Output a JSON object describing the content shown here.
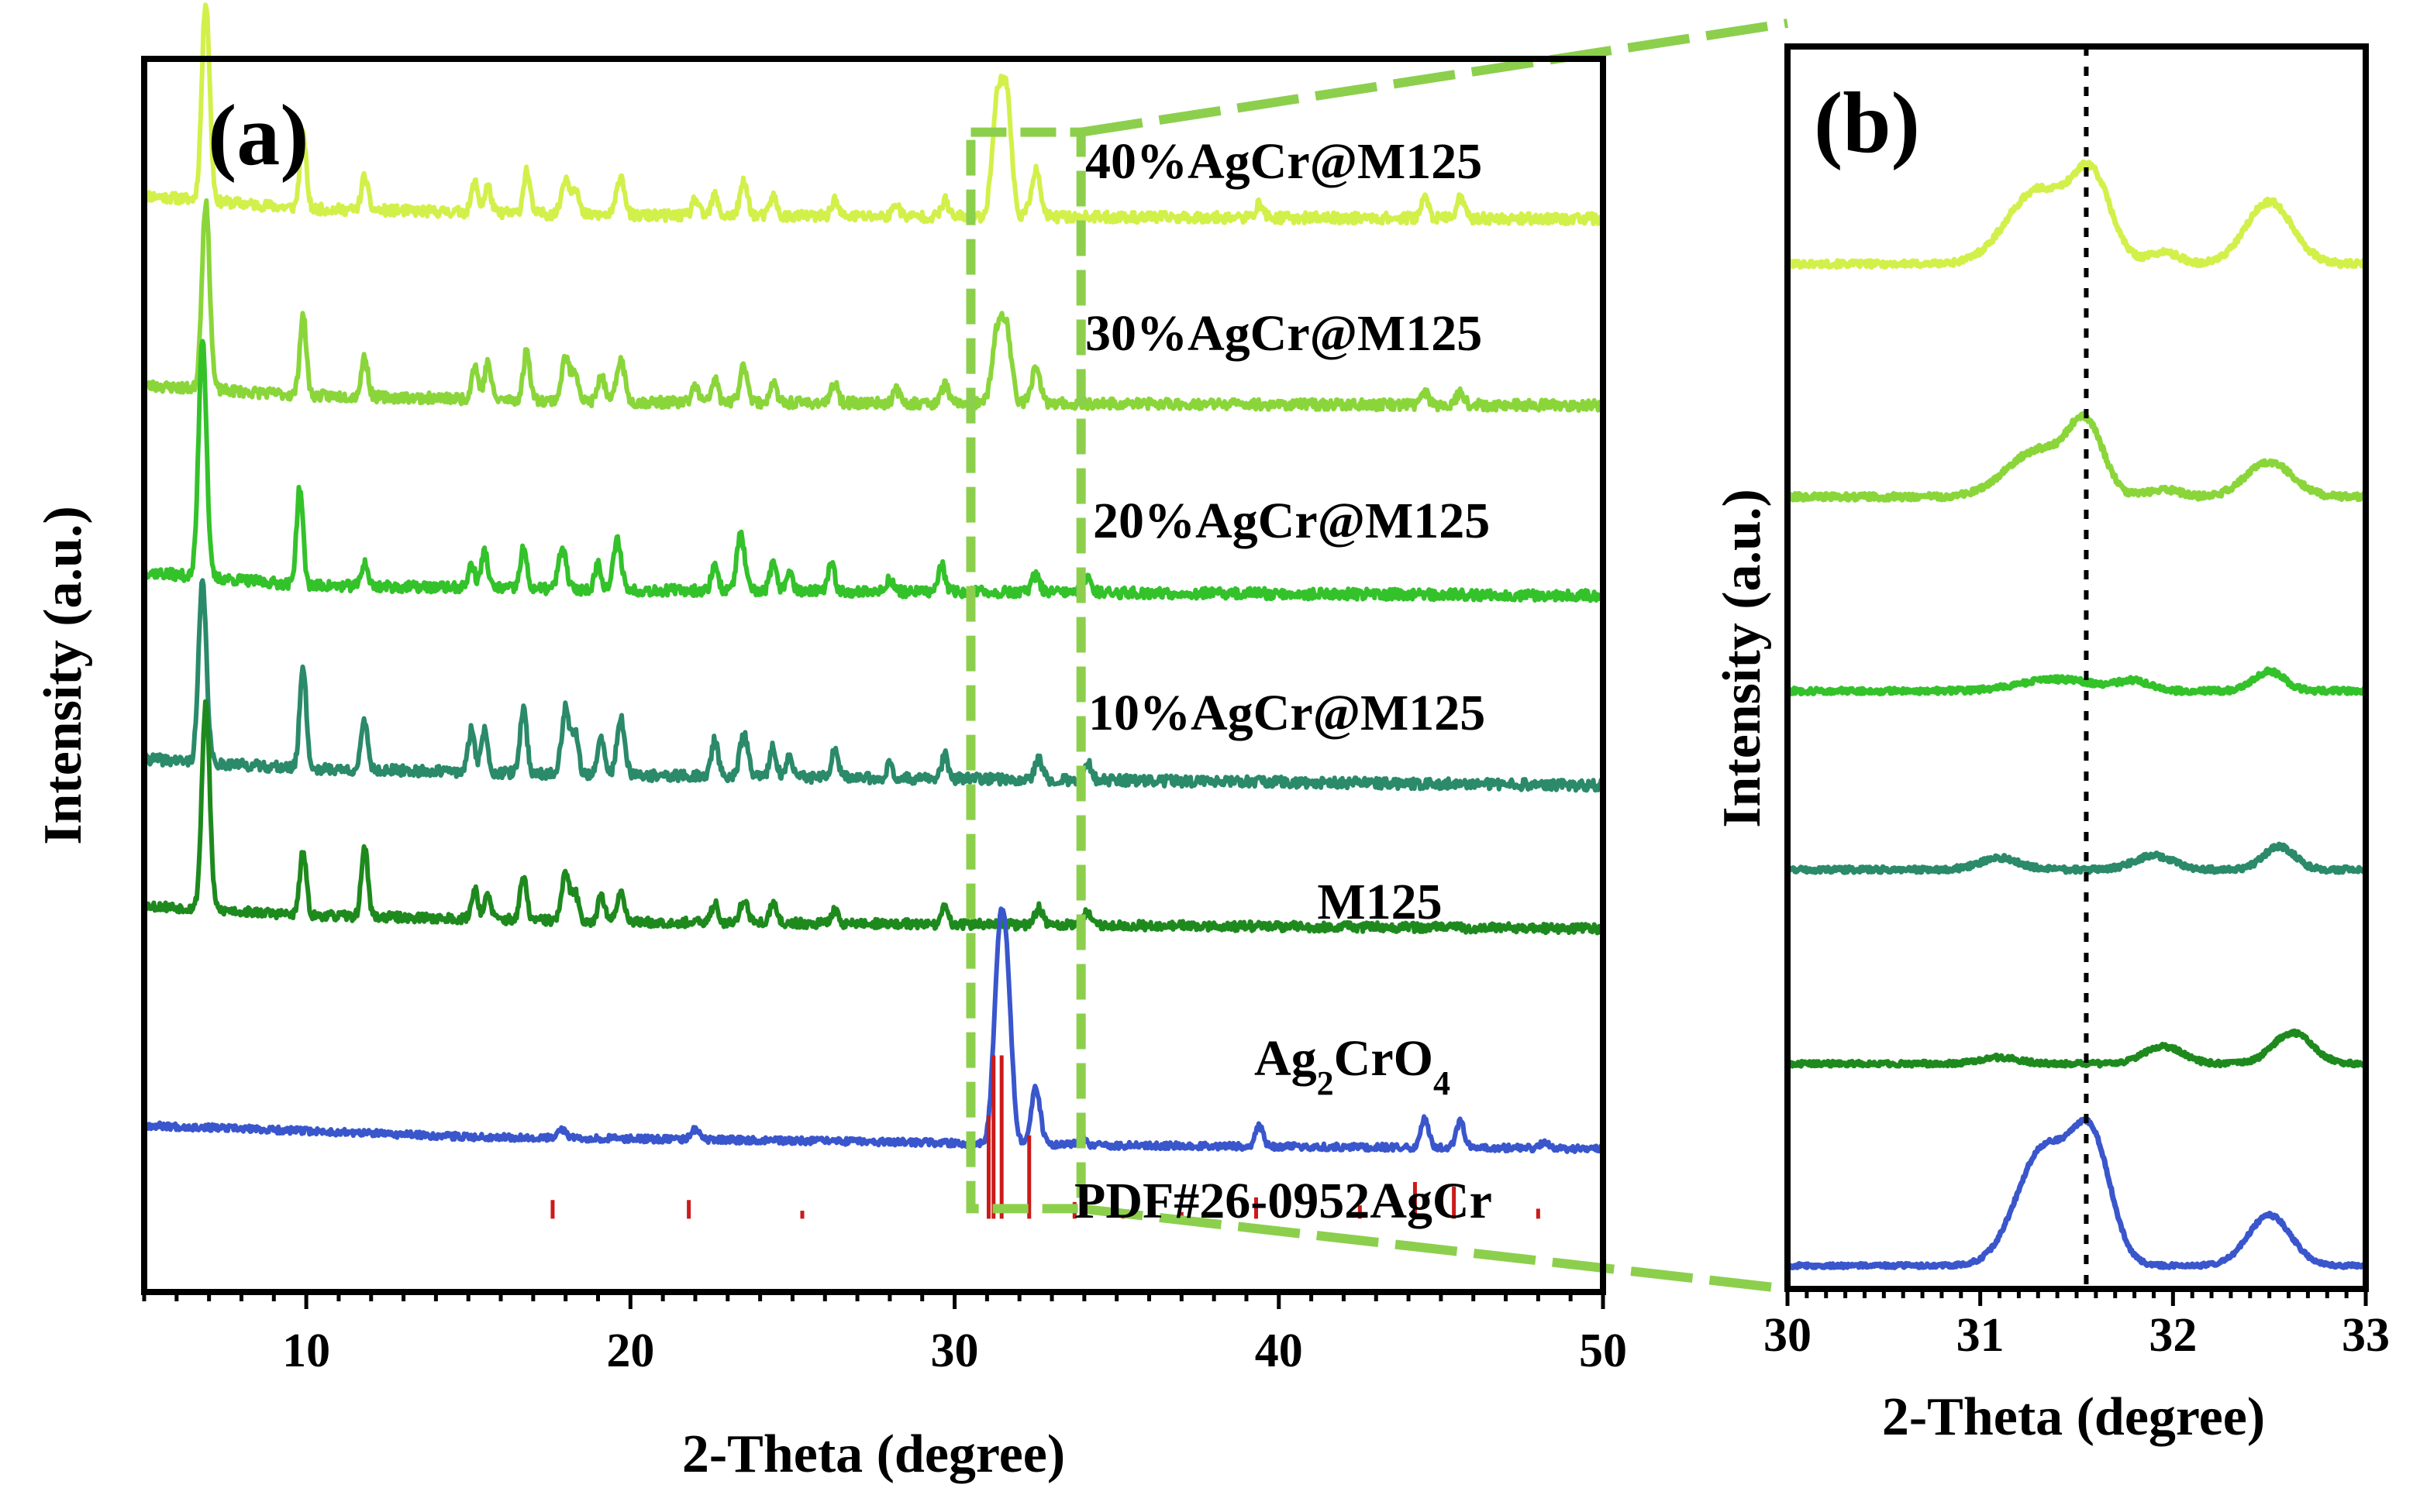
{
  "colors": {
    "s40": "#d2f04a",
    "s30": "#8ad63a",
    "s20": "#33c22a",
    "s10": "#2a8a6a",
    "m125": "#1e8a1e",
    "ag": "#3a56cc",
    "pdf": "#cc1a1a",
    "zoom": "#8ccf4d",
    "axis": "#000000"
  },
  "chart_data": [
    {
      "id": "a",
      "panel_label": "(a)",
      "type": "line",
      "xlabel": "2-Theta (degree)",
      "ylabel": "Intensity (a.u.)",
      "xlim": [
        5,
        50
      ],
      "xticks": [
        10,
        20,
        30,
        40,
        50
      ],
      "tick_labels": [
        "10",
        "20",
        "30",
        "40",
        "50"
      ],
      "ylim": [
        -1.1,
        17.4
      ],
      "y_units": "arbitrary (vertically offset stacked patterns)",
      "series": [
        {
          "key": "s40",
          "name": "40%AgCr@M125",
          "color_key": "s40",
          "offset": 15.0,
          "noise": 0.08,
          "seed": 11,
          "baseline": [
            [
              5,
              0.35
            ],
            [
              10,
              0.15
            ],
            [
              20,
              0.05
            ],
            [
              50,
              0.0
            ]
          ],
          "peaks": [
            [
              6.9,
              3.0,
              0.12
            ],
            [
              9.9,
              1.1,
              0.1
            ],
            [
              11.8,
              0.5,
              0.1
            ],
            [
              15.2,
              0.45,
              0.1
            ],
            [
              15.6,
              0.4,
              0.1
            ],
            [
              16.8,
              0.65,
              0.1
            ],
            [
              18.0,
              0.55,
              0.12
            ],
            [
              18.3,
              0.4,
              0.1
            ],
            [
              19.7,
              0.6,
              0.12
            ],
            [
              22.0,
              0.25,
              0.1
            ],
            [
              22.6,
              0.3,
              0.1
            ],
            [
              23.5,
              0.5,
              0.12
            ],
            [
              24.4,
              0.3,
              0.1
            ],
            [
              26.3,
              0.25,
              0.1
            ],
            [
              28.2,
              0.2,
              0.1
            ],
            [
              29.7,
              0.25,
              0.1
            ],
            [
              31.3,
              1.6,
              0.15
            ],
            [
              31.6,
              1.8,
              0.15
            ],
            [
              32.5,
              0.7,
              0.14
            ],
            [
              39.4,
              0.2,
              0.12
            ],
            [
              44.5,
              0.3,
              0.12
            ],
            [
              45.6,
              0.3,
              0.12
            ]
          ]
        },
        {
          "key": "s30",
          "name": "30%AgCr@M125",
          "color_key": "s30",
          "offset": 12.2,
          "noise": 0.08,
          "seed": 23,
          "baseline": [
            [
              5,
              0.3
            ],
            [
              10,
              0.15
            ],
            [
              20,
              0.05
            ],
            [
              50,
              0.0
            ]
          ],
          "peaks": [
            [
              6.9,
              2.8,
              0.12
            ],
            [
              9.9,
              1.2,
              0.1
            ],
            [
              11.8,
              0.6,
              0.1
            ],
            [
              15.2,
              0.5,
              0.1
            ],
            [
              15.6,
              0.55,
              0.1
            ],
            [
              16.8,
              0.75,
              0.1
            ],
            [
              18.0,
              0.65,
              0.12
            ],
            [
              18.3,
              0.45,
              0.1
            ],
            [
              19.1,
              0.4,
              0.1
            ],
            [
              19.7,
              0.65,
              0.12
            ],
            [
              22.0,
              0.25,
              0.1
            ],
            [
              22.6,
              0.35,
              0.1
            ],
            [
              23.5,
              0.55,
              0.12
            ],
            [
              24.4,
              0.3,
              0.1
            ],
            [
              26.3,
              0.3,
              0.1
            ],
            [
              28.2,
              0.2,
              0.1
            ],
            [
              29.7,
              0.3,
              0.1
            ],
            [
              31.3,
              1.0,
              0.15
            ],
            [
              31.6,
              1.1,
              0.15
            ],
            [
              32.5,
              0.5,
              0.14
            ],
            [
              44.5,
              0.2,
              0.12
            ],
            [
              45.6,
              0.2,
              0.12
            ]
          ]
        },
        {
          "key": "s20",
          "name": "20%AgCr@M125",
          "color_key": "s20",
          "offset": 9.35,
          "noise": 0.08,
          "seed": 37,
          "baseline": [
            [
              5,
              0.35
            ],
            [
              10,
              0.15
            ],
            [
              20,
              0.08
            ],
            [
              50,
              0.0
            ]
          ],
          "peaks": [
            [
              6.8,
              3.6,
              0.12
            ],
            [
              9.8,
              1.45,
              0.1
            ],
            [
              11.8,
              0.35,
              0.1
            ],
            [
              15.1,
              0.35,
              0.1
            ],
            [
              15.5,
              0.55,
              0.1
            ],
            [
              16.7,
              0.6,
              0.1
            ],
            [
              17.9,
              0.6,
              0.12
            ],
            [
              19.0,
              0.4,
              0.1
            ],
            [
              19.6,
              0.75,
              0.12
            ],
            [
              22.6,
              0.4,
              0.1
            ],
            [
              23.4,
              0.85,
              0.12
            ],
            [
              24.4,
              0.4,
              0.1
            ],
            [
              24.9,
              0.3,
              0.1
            ],
            [
              26.2,
              0.4,
              0.1
            ],
            [
              28.0,
              0.2,
              0.1
            ],
            [
              29.6,
              0.4,
              0.1
            ],
            [
              32.5,
              0.25,
              0.12
            ],
            [
              34.1,
              0.25,
              0.12
            ]
          ]
        },
        {
          "key": "s10",
          "name": "10%AgCr@M125",
          "color_key": "s10",
          "offset": 6.5,
          "noise": 0.08,
          "seed": 41,
          "baseline": [
            [
              5,
              0.4
            ],
            [
              10,
              0.25
            ],
            [
              20,
              0.15
            ],
            [
              50,
              0.0
            ]
          ],
          "peaks": [
            [
              6.8,
              2.7,
              0.12
            ],
            [
              9.9,
              1.55,
              0.1
            ],
            [
              11.8,
              0.75,
              0.1
            ],
            [
              15.1,
              0.65,
              0.1
            ],
            [
              15.5,
              0.65,
              0.1
            ],
            [
              16.7,
              1.0,
              0.1
            ],
            [
              18.0,
              1.0,
              0.12
            ],
            [
              18.3,
              0.6,
              0.1
            ],
            [
              19.1,
              0.55,
              0.1
            ],
            [
              19.7,
              0.85,
              0.12
            ],
            [
              22.6,
              0.55,
              0.1
            ],
            [
              23.5,
              0.65,
              0.12
            ],
            [
              24.4,
              0.45,
              0.1
            ],
            [
              24.9,
              0.3,
              0.1
            ],
            [
              26.3,
              0.4,
              0.1
            ],
            [
              28.0,
              0.2,
              0.1
            ],
            [
              29.7,
              0.35,
              0.1
            ],
            [
              32.6,
              0.3,
              0.12
            ],
            [
              34.1,
              0.25,
              0.12
            ]
          ]
        },
        {
          "key": "m125",
          "name": "M125",
          "color_key": "m125",
          "offset": 4.35,
          "noise": 0.07,
          "seed": 53,
          "baseline": [
            [
              5,
              0.35
            ],
            [
              10,
              0.2
            ],
            [
              20,
              0.1
            ],
            [
              50,
              0.0
            ]
          ],
          "peaks": [
            [
              6.9,
              3.1,
              0.12
            ],
            [
              9.9,
              0.95,
              0.1
            ],
            [
              11.8,
              1.05,
              0.1
            ],
            [
              15.2,
              0.45,
              0.1
            ],
            [
              15.6,
              0.35,
              0.1
            ],
            [
              16.7,
              0.65,
              0.1
            ],
            [
              18.0,
              0.7,
              0.12
            ],
            [
              18.3,
              0.4,
              0.1
            ],
            [
              19.1,
              0.4,
              0.1
            ],
            [
              19.7,
              0.45,
              0.12
            ],
            [
              22.6,
              0.3,
              0.1
            ],
            [
              23.5,
              0.35,
              0.12
            ],
            [
              24.4,
              0.3,
              0.1
            ],
            [
              26.3,
              0.2,
              0.1
            ],
            [
              29.7,
              0.25,
              0.1
            ],
            [
              32.6,
              0.25,
              0.12
            ],
            [
              34.1,
              0.2,
              0.12
            ]
          ]
        },
        {
          "key": "ag",
          "name": "Ag2CrO4",
          "color_key": "ag",
          "offset": 1.05,
          "noise": 0.05,
          "seed": 67,
          "baseline": [
            [
              5,
              0.35
            ],
            [
              15,
              0.18
            ],
            [
              25,
              0.12
            ],
            [
              35,
              0.05
            ],
            [
              50,
              0.0
            ]
          ],
          "peaks": [
            [
              17.9,
              0.12,
              0.12
            ],
            [
              22.0,
              0.15,
              0.12
            ],
            [
              31.35,
              2.4,
              0.16
            ],
            [
              31.6,
              2.4,
              0.16
            ],
            [
              32.5,
              0.85,
              0.14
            ],
            [
              33.9,
              0.12,
              0.12
            ],
            [
              39.4,
              0.3,
              0.12
            ],
            [
              44.5,
              0.45,
              0.12
            ],
            [
              45.6,
              0.4,
              0.12
            ],
            [
              48.2,
              0.1,
              0.12
            ]
          ]
        }
      ],
      "series_labels": [
        {
          "series": "s40",
          "text": "40%AgCr@M125"
        },
        {
          "series": "s30",
          "text": "30%AgCr@M125"
        },
        {
          "series": "s20",
          "text": "20%AgCr@M125"
        },
        {
          "series": "s10",
          "text": "10%AgCr@M125"
        },
        {
          "series": "m125",
          "text": "M125"
        },
        {
          "series": "ag",
          "text": "Ag",
          "sub": "2",
          "text2": "CrO",
          "sub2": "4"
        },
        {
          "series": "pdf",
          "text": "PDF#26-0952AgCr"
        }
      ],
      "reference": {
        "name": "PDF#26-0952AgCr",
        "color_key": "pdf",
        "baseline": 0,
        "lines": [
          [
            17.6,
            0.28
          ],
          [
            21.8,
            0.28
          ],
          [
            25.3,
            0.12
          ],
          [
            31.05,
            1.55
          ],
          [
            31.2,
            2.45
          ],
          [
            31.45,
            2.45
          ],
          [
            32.3,
            1.25
          ],
          [
            33.7,
            0.25
          ],
          [
            35.2,
            0.1
          ],
          [
            37.0,
            0.1
          ],
          [
            39.3,
            0.32
          ],
          [
            42.5,
            0.2
          ],
          [
            44.2,
            0.55
          ],
          [
            45.4,
            0.48
          ],
          [
            48.0,
            0.15
          ]
        ]
      },
      "zoom_box": {
        "x": [
          30.5,
          33.9
        ],
        "y": [
          0.15,
          16.3
        ]
      }
    },
    {
      "id": "b",
      "panel_label": "(b)",
      "type": "line",
      "xlabel": "2-Theta (degree)",
      "ylabel": "Intensity (a.u.)",
      "xlim": [
        30,
        33
      ],
      "xticks": [
        30,
        31,
        32,
        33
      ],
      "tick_labels": [
        "30",
        "31",
        "32",
        "33"
      ],
      "ylim": [
        0,
        16
      ],
      "y_units": "arbitrary (vertically offset stacked patterns)",
      "reference_line_x": 31.55,
      "series": [
        {
          "key": "s40",
          "name": "40%AgCr@M125",
          "color_key": "s40",
          "offset": 13.2,
          "noise": 0.04,
          "seed": 101,
          "baseline": [
            [
              30,
              0.0
            ],
            [
              33,
              0.0
            ]
          ],
          "peaks": [
            [
              31.3,
              0.95,
              0.16
            ],
            [
              31.58,
              1.05,
              0.1
            ],
            [
              31.95,
              0.15,
              0.08
            ],
            [
              32.5,
              0.8,
              0.12
            ]
          ]
        },
        {
          "key": "s30",
          "name": "30%AgCr@M125",
          "color_key": "s30",
          "offset": 10.2,
          "noise": 0.04,
          "seed": 113,
          "baseline": [
            [
              30,
              0.0
            ],
            [
              33,
              0.0
            ]
          ],
          "peaks": [
            [
              31.3,
              0.6,
              0.16
            ],
            [
              31.55,
              0.85,
              0.09
            ],
            [
              31.95,
              0.1,
              0.08
            ],
            [
              32.5,
              0.45,
              0.12
            ]
          ]
        },
        {
          "key": "s20",
          "name": "20%AgCr@M125",
          "color_key": "s20",
          "offset": 7.7,
          "noise": 0.035,
          "seed": 127,
          "baseline": [
            [
              30,
              0.0
            ],
            [
              33,
              0.0
            ]
          ],
          "peaks": [
            [
              31.4,
              0.15,
              0.2
            ],
            [
              31.8,
              0.12,
              0.08
            ],
            [
              32.5,
              0.25,
              0.08
            ]
          ]
        },
        {
          "key": "s10",
          "name": "10%AgCr@M125",
          "color_key": "s10",
          "offset": 5.4,
          "noise": 0.035,
          "seed": 131,
          "baseline": [
            [
              30,
              0.0
            ],
            [
              33,
              0.0
            ]
          ],
          "peaks": [
            [
              31.1,
              0.15,
              0.1
            ],
            [
              31.9,
              0.18,
              0.1
            ],
            [
              32.55,
              0.3,
              0.08
            ]
          ]
        },
        {
          "key": "m125",
          "name": "M125",
          "color_key": "m125",
          "offset": 2.9,
          "noise": 0.03,
          "seed": 149,
          "baseline": [
            [
              30,
              0.0
            ],
            [
              33,
              0.0
            ]
          ],
          "peaks": [
            [
              31.1,
              0.08,
              0.1
            ],
            [
              31.95,
              0.22,
              0.1
            ],
            [
              32.62,
              0.4,
              0.1
            ]
          ]
        },
        {
          "key": "ag",
          "name": "Ag2CrO4",
          "color_key": "ag",
          "offset": 0.3,
          "noise": 0.025,
          "seed": 157,
          "baseline": [
            [
              30,
              0.0
            ],
            [
              33,
              0.0
            ]
          ],
          "peaks": [
            [
              31.33,
              1.5,
              0.14
            ],
            [
              31.58,
              1.5,
              0.1
            ],
            [
              32.5,
              0.65,
              0.11
            ]
          ]
        }
      ]
    }
  ]
}
